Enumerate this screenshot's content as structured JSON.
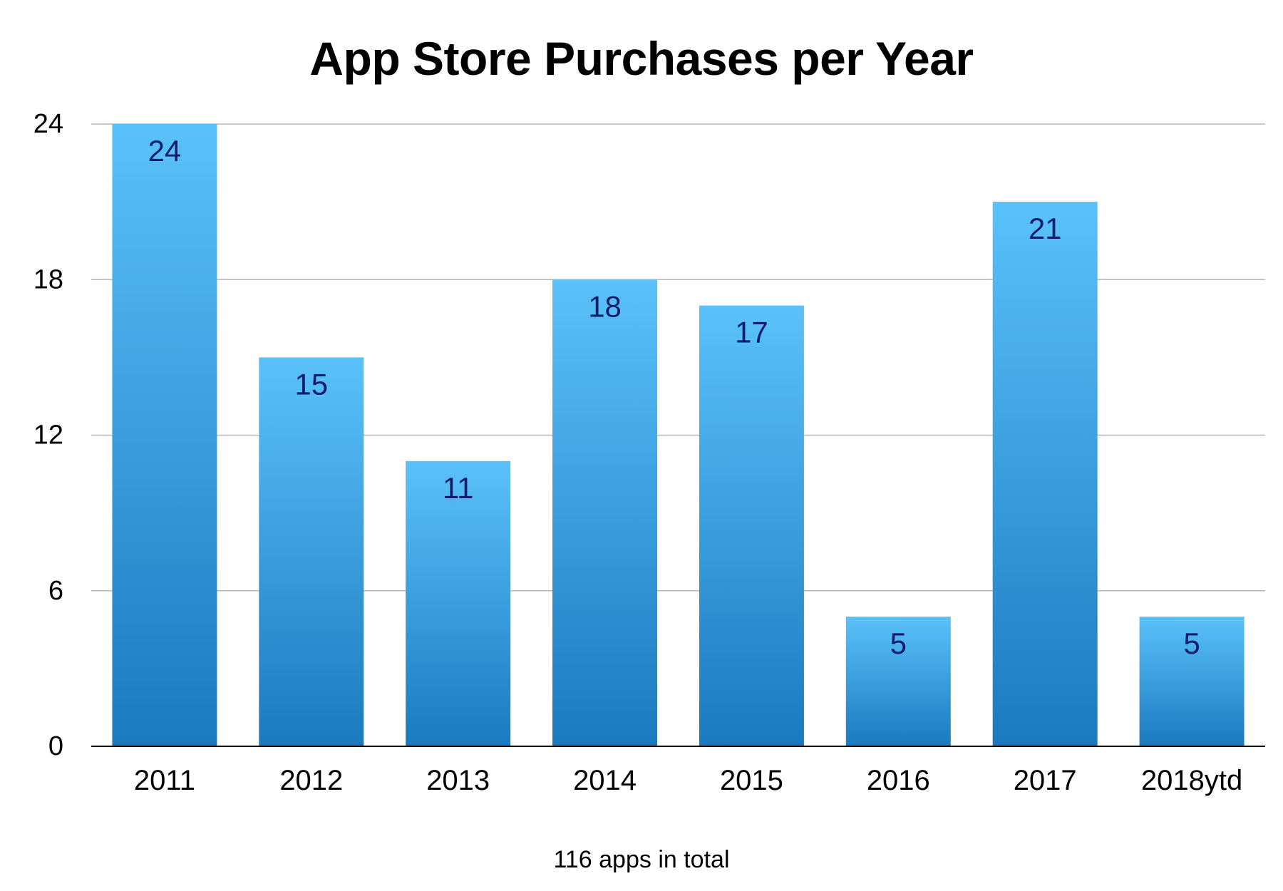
{
  "chart_data": {
    "type": "bar",
    "title": "App Store Purchases per Year",
    "categories": [
      "2011",
      "2012",
      "2013",
      "2014",
      "2015",
      "2016",
      "2017",
      "2018ytd"
    ],
    "values": [
      24,
      15,
      11,
      18,
      17,
      5,
      21,
      5
    ],
    "xlabel": "",
    "ylabel": "",
    "ylim": [
      0,
      24
    ],
    "yticks": [
      0,
      6,
      12,
      18,
      24
    ],
    "grid": true,
    "data_labels": "inside-top",
    "legend": "none",
    "annotation": "116 apps in total",
    "colors": {
      "bar_top": "#5ac1fa",
      "bar_bottom": "#1a7abf",
      "data_label": "#0d1f6b",
      "grid": "#b7b7b7",
      "axis": "#000000"
    }
  }
}
